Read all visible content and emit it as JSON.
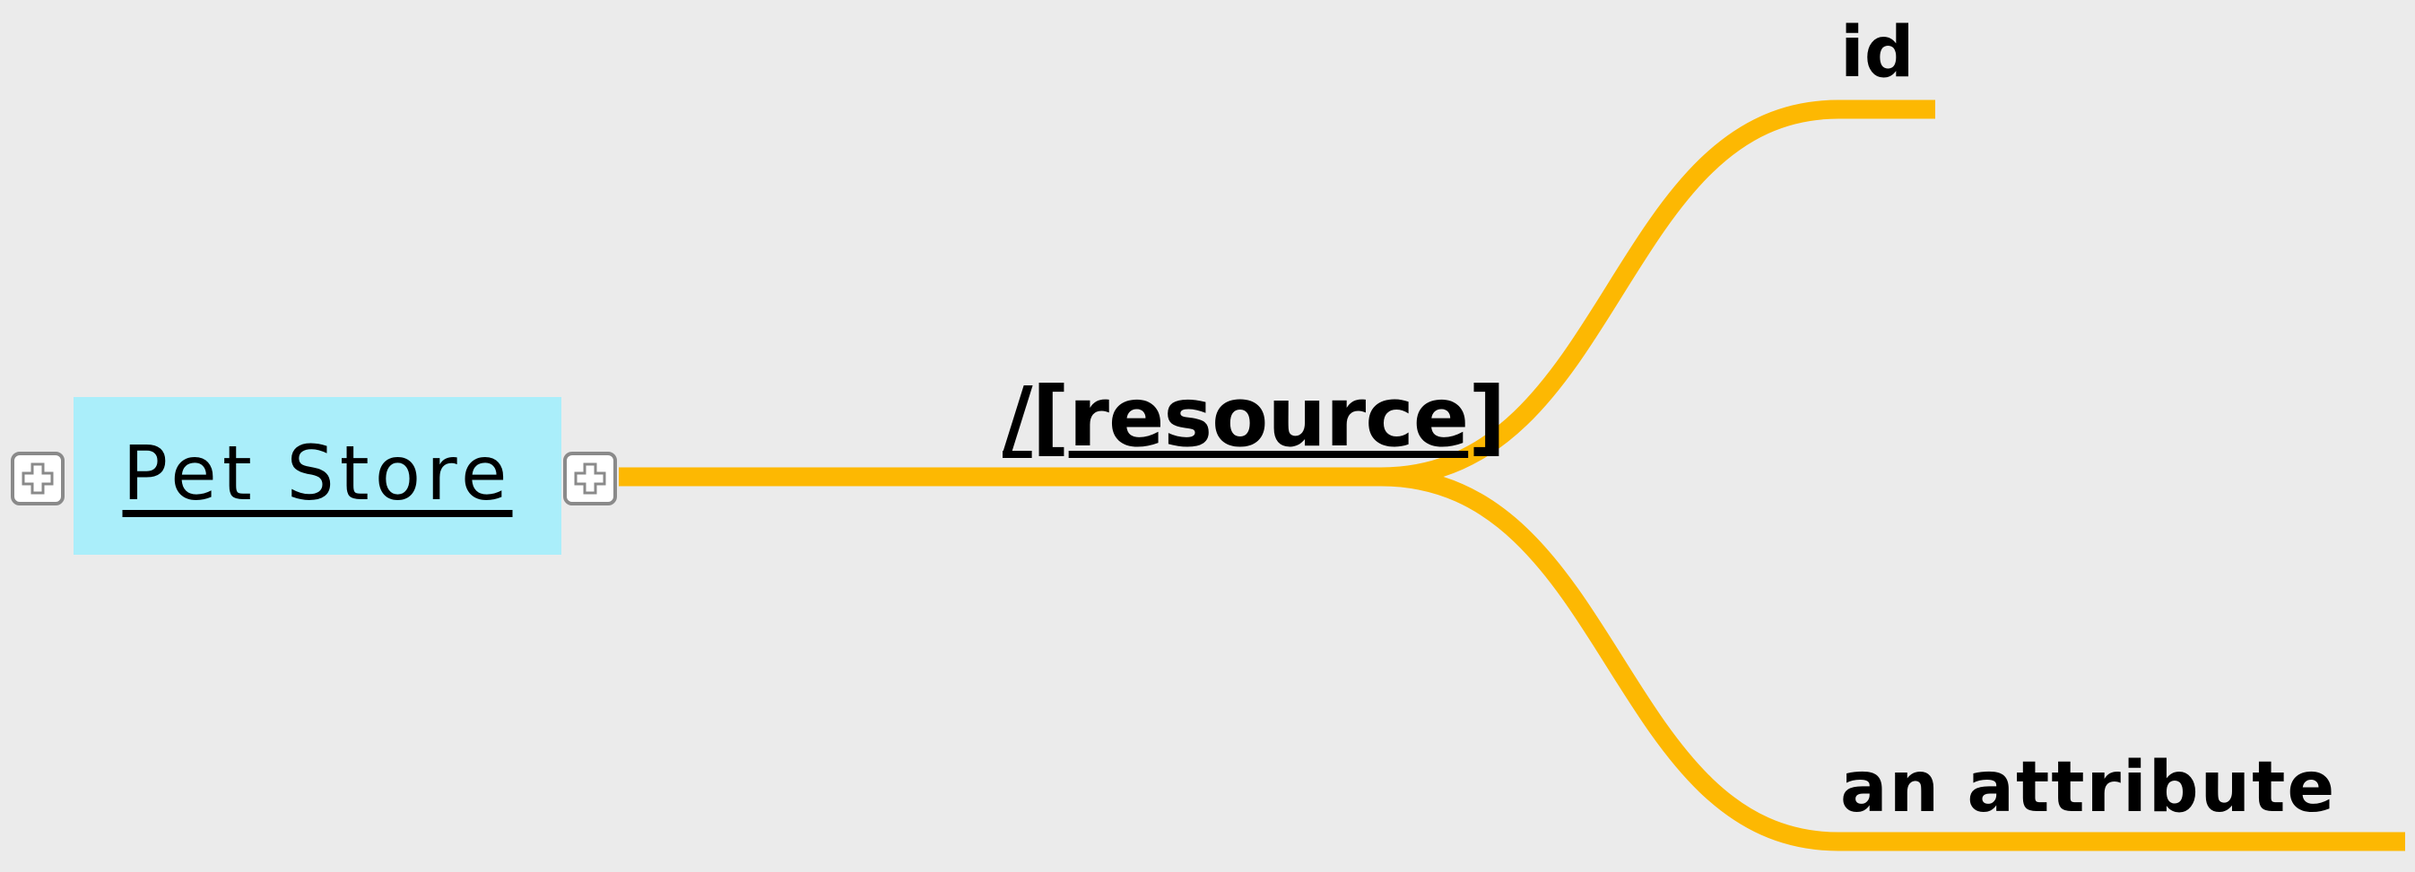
{
  "mindmap": {
    "root": {
      "label": "Pet Store",
      "background_color": "#aaeefa"
    },
    "branch": {
      "prefix": "/",
      "bracket_open": "[",
      "name": "resource",
      "bracket_close": "]"
    },
    "leaves": [
      {
        "label": "id"
      },
      {
        "label": "an attribute"
      }
    ],
    "colors": {
      "connector": "#fdb802",
      "background": "#ebebeb",
      "toggle_border": "#8a8a8a"
    },
    "icons": {
      "expand": "plus-icon"
    }
  }
}
